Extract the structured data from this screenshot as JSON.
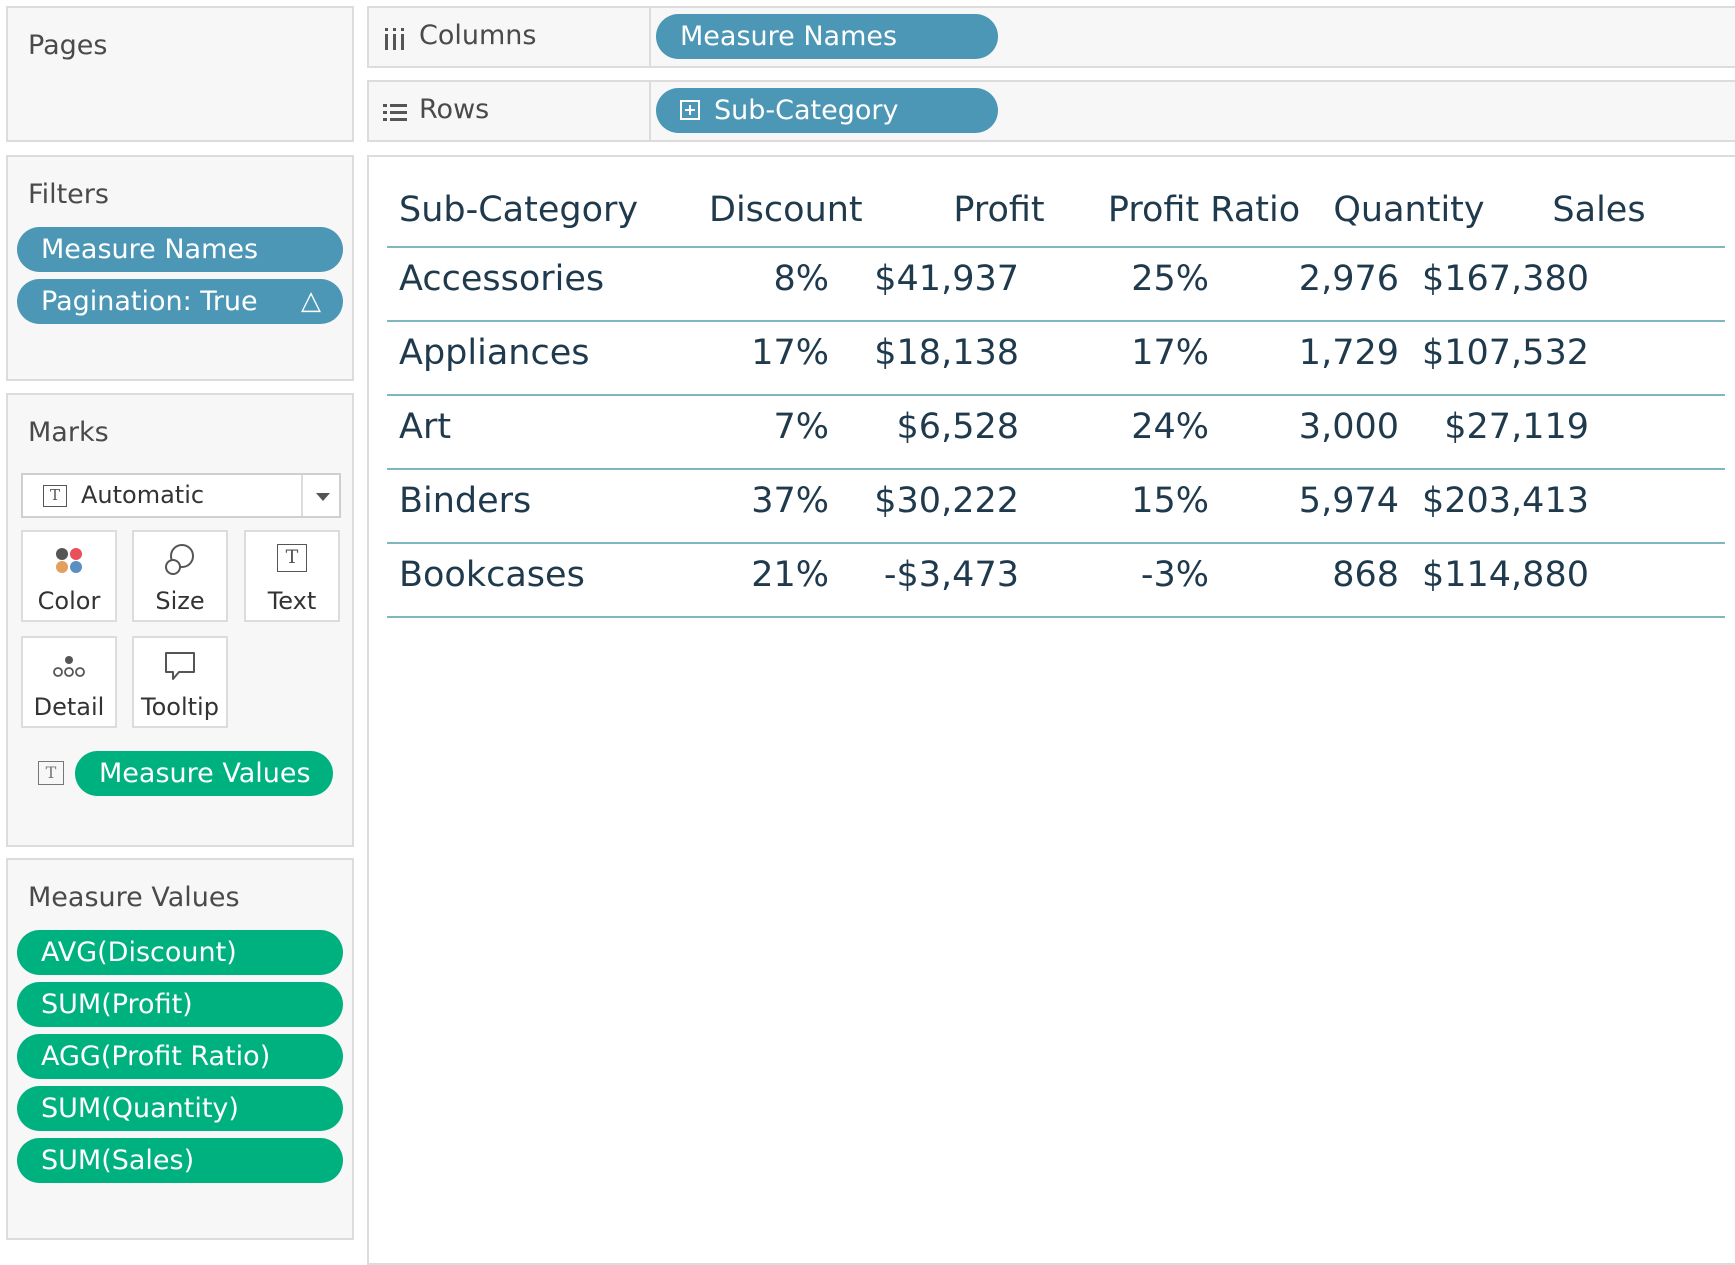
{
  "pages": {
    "title": "Pages"
  },
  "filters": {
    "title": "Filters",
    "items": [
      {
        "label": "Measure Names"
      },
      {
        "label": "Pagination: True",
        "icon": "delta-icon"
      }
    ]
  },
  "marks": {
    "title": "Marks",
    "type_select": {
      "value": "Automatic",
      "icon": "text-mark-icon"
    },
    "buttons": [
      {
        "label": "Color",
        "icon": "color-icon"
      },
      {
        "label": "Size",
        "icon": "size-icon"
      },
      {
        "label": "Text",
        "icon": "text-icon"
      },
      {
        "label": "Detail",
        "icon": "detail-icon"
      },
      {
        "label": "Tooltip",
        "icon": "tooltip-icon"
      }
    ],
    "encoding_pill": {
      "label": "Measure Values",
      "icon": "text-icon"
    }
  },
  "measure_values": {
    "title": "Measure Values",
    "items": [
      {
        "label": "AVG(Discount)"
      },
      {
        "label": "SUM(Profit)"
      },
      {
        "label": "AGG(Profit Ratio)"
      },
      {
        "label": "SUM(Quantity)"
      },
      {
        "label": "SUM(Sales)"
      }
    ]
  },
  "columns_shelf": {
    "label": "Columns",
    "pill": "Measure Names",
    "icon": "columns-icon"
  },
  "rows_shelf": {
    "label": "Rows",
    "pill": "Sub-Category",
    "icon": "rows-icon",
    "pill_icon": "expand-icon"
  },
  "table": {
    "headers": [
      "Sub-Category",
      "Discount",
      "Profit",
      "Profit Ratio",
      "Quantity",
      "Sales"
    ],
    "rows": [
      [
        "Accessories",
        "8%",
        "$41,937",
        "25%",
        "2,976",
        "$167,380"
      ],
      [
        "Appliances",
        "17%",
        "$18,138",
        "17%",
        "1,729",
        "$107,532"
      ],
      [
        "Art",
        "7%",
        "$6,528",
        "24%",
        "3,000",
        "$27,119"
      ],
      [
        "Binders",
        "37%",
        "$30,222",
        "15%",
        "5,974",
        "$203,413"
      ],
      [
        "Bookcases",
        "21%",
        "-$3,473",
        "-3%",
        "868",
        "$114,880"
      ]
    ]
  },
  "colors": {
    "blue_pill": "#4c97b5",
    "green_pill": "#00b180",
    "table_text": "#1f3a4d",
    "row_divider": "#7fb6c0"
  }
}
